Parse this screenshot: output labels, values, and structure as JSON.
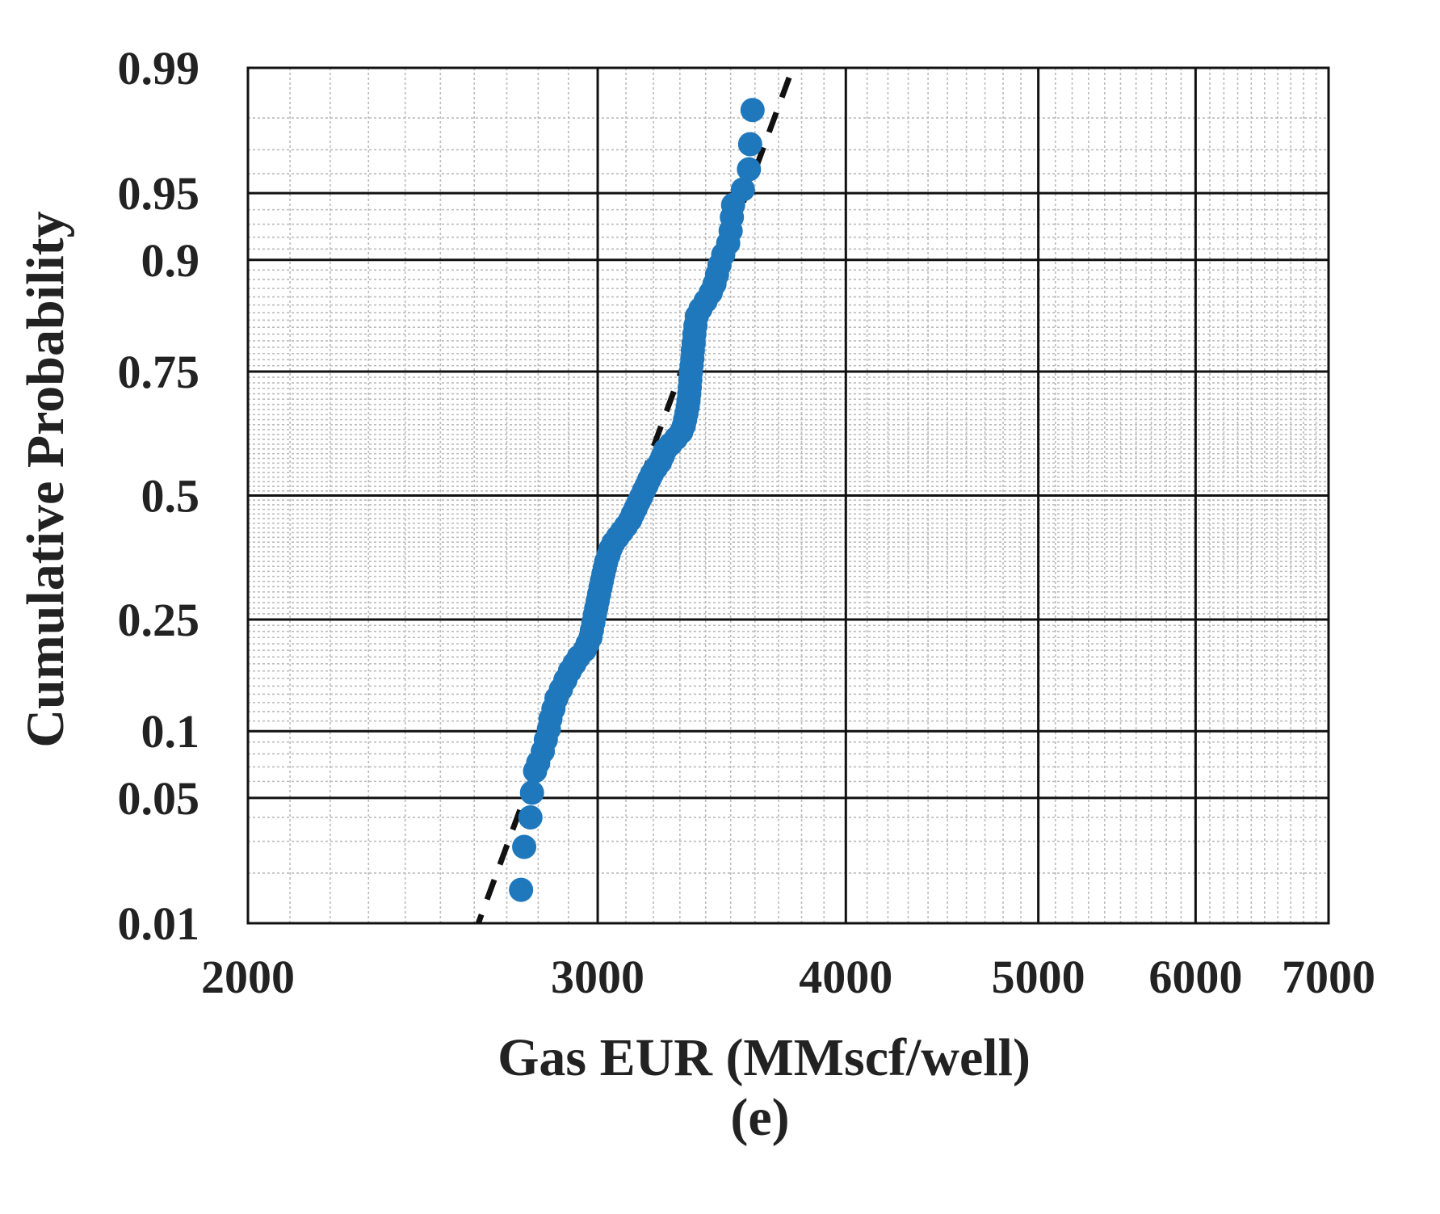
{
  "panel_label": "(e)",
  "colors": {
    "points": "#1f77bc",
    "fit_line": "#111111",
    "grid_major": "#111111",
    "grid_minor": "#bbbbbb",
    "text": "#222222"
  },
  "chart_data": {
    "type": "scatter",
    "plot_kind": "lognormal probability plot",
    "xlabel": "Gas EUR (MMscf/well)",
    "ylabel": "Cumulative Probability",
    "xscale": "log",
    "yscale": "normal-probability",
    "xlim": [
      2000,
      7000
    ],
    "ylim": [
      0.01,
      0.99
    ],
    "x_ticks": [
      2000,
      3000,
      4000,
      5000,
      6000,
      7000
    ],
    "x_tick_labels": [
      "2000",
      "3000",
      "4000",
      "5000",
      "6000",
      "7000"
    ],
    "y_ticks": [
      0.01,
      0.05,
      0.1,
      0.25,
      0.5,
      0.75,
      0.9,
      0.95,
      0.99
    ],
    "y_tick_labels": [
      "0.01",
      "0.05",
      "0.1",
      "0.25",
      "0.5",
      "0.75",
      "0.9",
      "0.95",
      "0.99"
    ],
    "grid": true,
    "fit_line": {
      "style": "dashed",
      "points": [
        [
          2600,
          0.0085
        ],
        [
          3800,
          0.993
        ]
      ]
    },
    "series": [
      {
        "marker": "circle",
        "points": [
          [
            2745,
            0.016
          ],
          [
            2755,
            0.028
          ],
          [
            2775,
            0.04
          ],
          [
            2780,
            0.053
          ],
          [
            2790,
            0.067
          ],
          [
            2800,
            0.073
          ],
          [
            2815,
            0.082
          ],
          [
            2825,
            0.092
          ],
          [
            2835,
            0.102
          ],
          [
            2840,
            0.112
          ],
          [
            2850,
            0.123
          ],
          [
            2860,
            0.135
          ],
          [
            2875,
            0.146
          ],
          [
            2890,
            0.158
          ],
          [
            2905,
            0.17
          ],
          [
            2920,
            0.18
          ],
          [
            2935,
            0.19
          ],
          [
            2955,
            0.2
          ],
          [
            2965,
            0.21
          ],
          [
            2975,
            0.22
          ],
          [
            2980,
            0.232
          ],
          [
            2985,
            0.245
          ],
          [
            2990,
            0.258
          ],
          [
            2995,
            0.27
          ],
          [
            3000,
            0.283
          ],
          [
            3005,
            0.296
          ],
          [
            3010,
            0.309
          ],
          [
            3015,
            0.322
          ],
          [
            3020,
            0.335
          ],
          [
            3025,
            0.347
          ],
          [
            3030,
            0.36
          ],
          [
            3038,
            0.373
          ],
          [
            3045,
            0.386
          ],
          [
            3055,
            0.398
          ],
          [
            3070,
            0.41
          ],
          [
            3085,
            0.422
          ],
          [
            3100,
            0.434
          ],
          [
            3115,
            0.447
          ],
          [
            3125,
            0.46
          ],
          [
            3135,
            0.472
          ],
          [
            3145,
            0.485
          ],
          [
            3155,
            0.497
          ],
          [
            3165,
            0.51
          ],
          [
            3175,
            0.522
          ],
          [
            3185,
            0.535
          ],
          [
            3195,
            0.547
          ],
          [
            3210,
            0.56
          ],
          [
            3225,
            0.572
          ],
          [
            3235,
            0.585
          ],
          [
            3245,
            0.598
          ],
          [
            3265,
            0.61
          ],
          [
            3285,
            0.622
          ],
          [
            3305,
            0.635
          ],
          [
            3315,
            0.648
          ],
          [
            3320,
            0.66
          ],
          [
            3325,
            0.672
          ],
          [
            3330,
            0.685
          ],
          [
            3333,
            0.697
          ],
          [
            3336,
            0.71
          ],
          [
            3338,
            0.722
          ],
          [
            3340,
            0.735
          ],
          [
            3342,
            0.748
          ],
          [
            3345,
            0.76
          ],
          [
            3348,
            0.772
          ],
          [
            3350,
            0.785
          ],
          [
            3353,
            0.797
          ],
          [
            3356,
            0.81
          ],
          [
            3360,
            0.822
          ],
          [
            3365,
            0.835
          ],
          [
            3380,
            0.845
          ],
          [
            3400,
            0.855
          ],
          [
            3420,
            0.865
          ],
          [
            3435,
            0.875
          ],
          [
            3445,
            0.885
          ],
          [
            3455,
            0.895
          ],
          [
            3470,
            0.905
          ],
          [
            3490,
            0.915
          ],
          [
            3500,
            0.925
          ],
          [
            3505,
            0.935
          ],
          [
            3510,
            0.943
          ],
          [
            3550,
            0.952
          ],
          [
            3575,
            0.962
          ],
          [
            3580,
            0.972
          ],
          [
            3590,
            0.982
          ]
        ]
      }
    ]
  }
}
